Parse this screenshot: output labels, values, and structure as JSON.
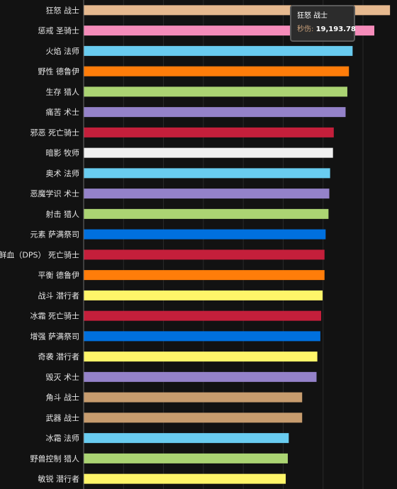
{
  "chart_data": {
    "type": "bar",
    "orientation": "horizontal",
    "grid": true,
    "categories": [
      "狂怒 战士",
      "惩戒 圣骑士",
      "火焰 法师",
      "野性 德鲁伊",
      "生存 猎人",
      "痛苦 术士",
      "邪恶 死亡骑士",
      "暗影 牧师",
      "奥术 法师",
      "恶魔学识 术士",
      "射击 猎人",
      "元素 萨满祭司",
      "鲜血（DPS） 死亡骑士",
      "平衡 德鲁伊",
      "战斗 潜行者",
      "冰霜 死亡骑士",
      "增强 萨满祭司",
      "奇袭 潜行者",
      "毁灭 术士",
      "角斗 战士",
      "武器 战士",
      "冰霜 法师",
      "野兽控制 猎人",
      "敏锐 潜行者"
    ],
    "values": [
      19193.78,
      18210,
      16850,
      16620,
      16520,
      16410,
      15670,
      15620,
      15440,
      15390,
      15340,
      15160,
      15090,
      15090,
      14970,
      14880,
      14830,
      14640,
      14590,
      13690,
      13690,
      12850,
      12790,
      12660
    ],
    "colors": [
      "#e6b98f",
      "#f58cba",
      "#69ccf0",
      "#ff7d0a",
      "#abd473",
      "#9482c9",
      "#c41f3b",
      "#f0f0f0",
      "#69ccf0",
      "#9482c9",
      "#abd473",
      "#0070de",
      "#c41f3b",
      "#ff7d0a",
      "#fff569",
      "#c41f3b",
      "#0070de",
      "#fff569",
      "#9482c9",
      "#c79c6e",
      "#c79c6e",
      "#69ccf0",
      "#abd473",
      "#fff569"
    ],
    "tooltip": {
      "title": "狂怒 战士",
      "label": "秒伤:",
      "value": "19,193.78"
    }
  }
}
